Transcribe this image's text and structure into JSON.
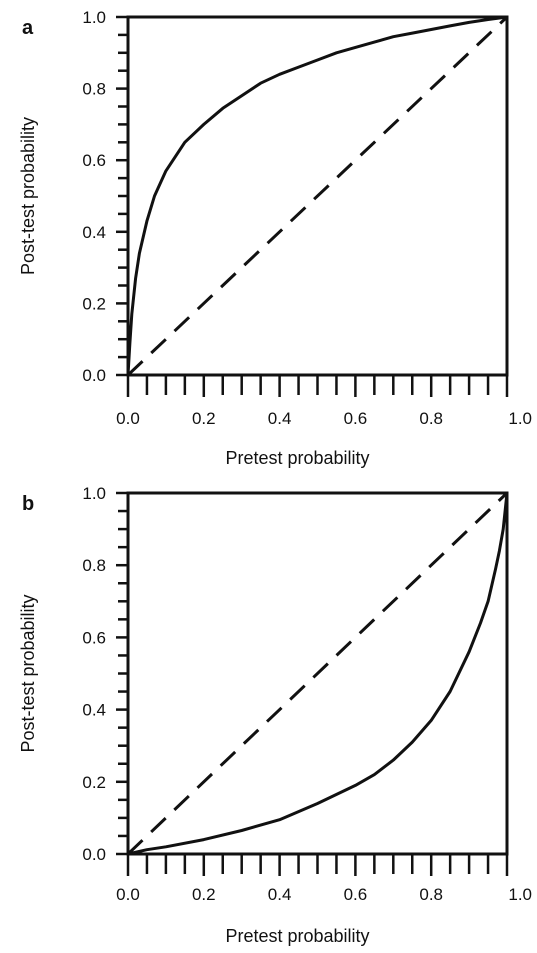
{
  "chart_data": [
    {
      "panel_label": "a",
      "type": "line",
      "xlabel": "Pretest probability",
      "ylabel": "Post-test probability",
      "xlim": [
        0,
        1
      ],
      "ylim": [
        0,
        1
      ],
      "x_ticks": [
        "0.0",
        "0.2",
        "0.4",
        "0.6",
        "0.8",
        "1.0"
      ],
      "y_ticks": [
        "0.0",
        "0.2",
        "0.4",
        "0.6",
        "0.8",
        "1.0"
      ],
      "grid": false,
      "series": [
        {
          "style": "solid",
          "x": [
            0,
            0.005,
            0.01,
            0.02,
            0.03,
            0.05,
            0.07,
            0.1,
            0.15,
            0.2,
            0.25,
            0.3,
            0.35,
            0.4,
            0.45,
            0.5,
            0.55,
            0.6,
            0.65,
            0.7,
            0.75,
            0.8,
            0.85,
            0.9,
            0.95,
            1.0
          ],
          "y": [
            0,
            0.09,
            0.17,
            0.27,
            0.34,
            0.43,
            0.5,
            0.57,
            0.65,
            0.7,
            0.745,
            0.78,
            0.815,
            0.84,
            0.86,
            0.88,
            0.9,
            0.915,
            0.93,
            0.945,
            0.955,
            0.965,
            0.975,
            0.985,
            0.993,
            1.0
          ]
        },
        {
          "style": "dashed",
          "x": [
            0,
            1
          ],
          "y": [
            0,
            1
          ]
        }
      ]
    },
    {
      "panel_label": "b",
      "type": "line",
      "xlabel": "Pretest probability",
      "ylabel": "Post-test probability",
      "xlim": [
        0,
        1
      ],
      "ylim": [
        0,
        1
      ],
      "x_ticks": [
        "0.0",
        "0.2",
        "0.4",
        "0.6",
        "0.8",
        "1.0"
      ],
      "y_ticks": [
        "0.0",
        "0.2",
        "0.4",
        "0.6",
        "0.8",
        "1.0"
      ],
      "grid": false,
      "series": [
        {
          "style": "solid",
          "x": [
            0,
            0.05,
            0.1,
            0.2,
            0.3,
            0.4,
            0.5,
            0.6,
            0.65,
            0.7,
            0.75,
            0.8,
            0.85,
            0.9,
            0.93,
            0.95,
            0.97,
            0.98,
            0.99,
            1.0
          ],
          "y": [
            0,
            0.012,
            0.02,
            0.04,
            0.065,
            0.095,
            0.14,
            0.19,
            0.22,
            0.26,
            0.31,
            0.37,
            0.45,
            0.56,
            0.64,
            0.7,
            0.79,
            0.84,
            0.9,
            1.0
          ]
        },
        {
          "style": "dashed",
          "x": [
            0,
            1
          ],
          "y": [
            0,
            1
          ]
        }
      ]
    }
  ]
}
